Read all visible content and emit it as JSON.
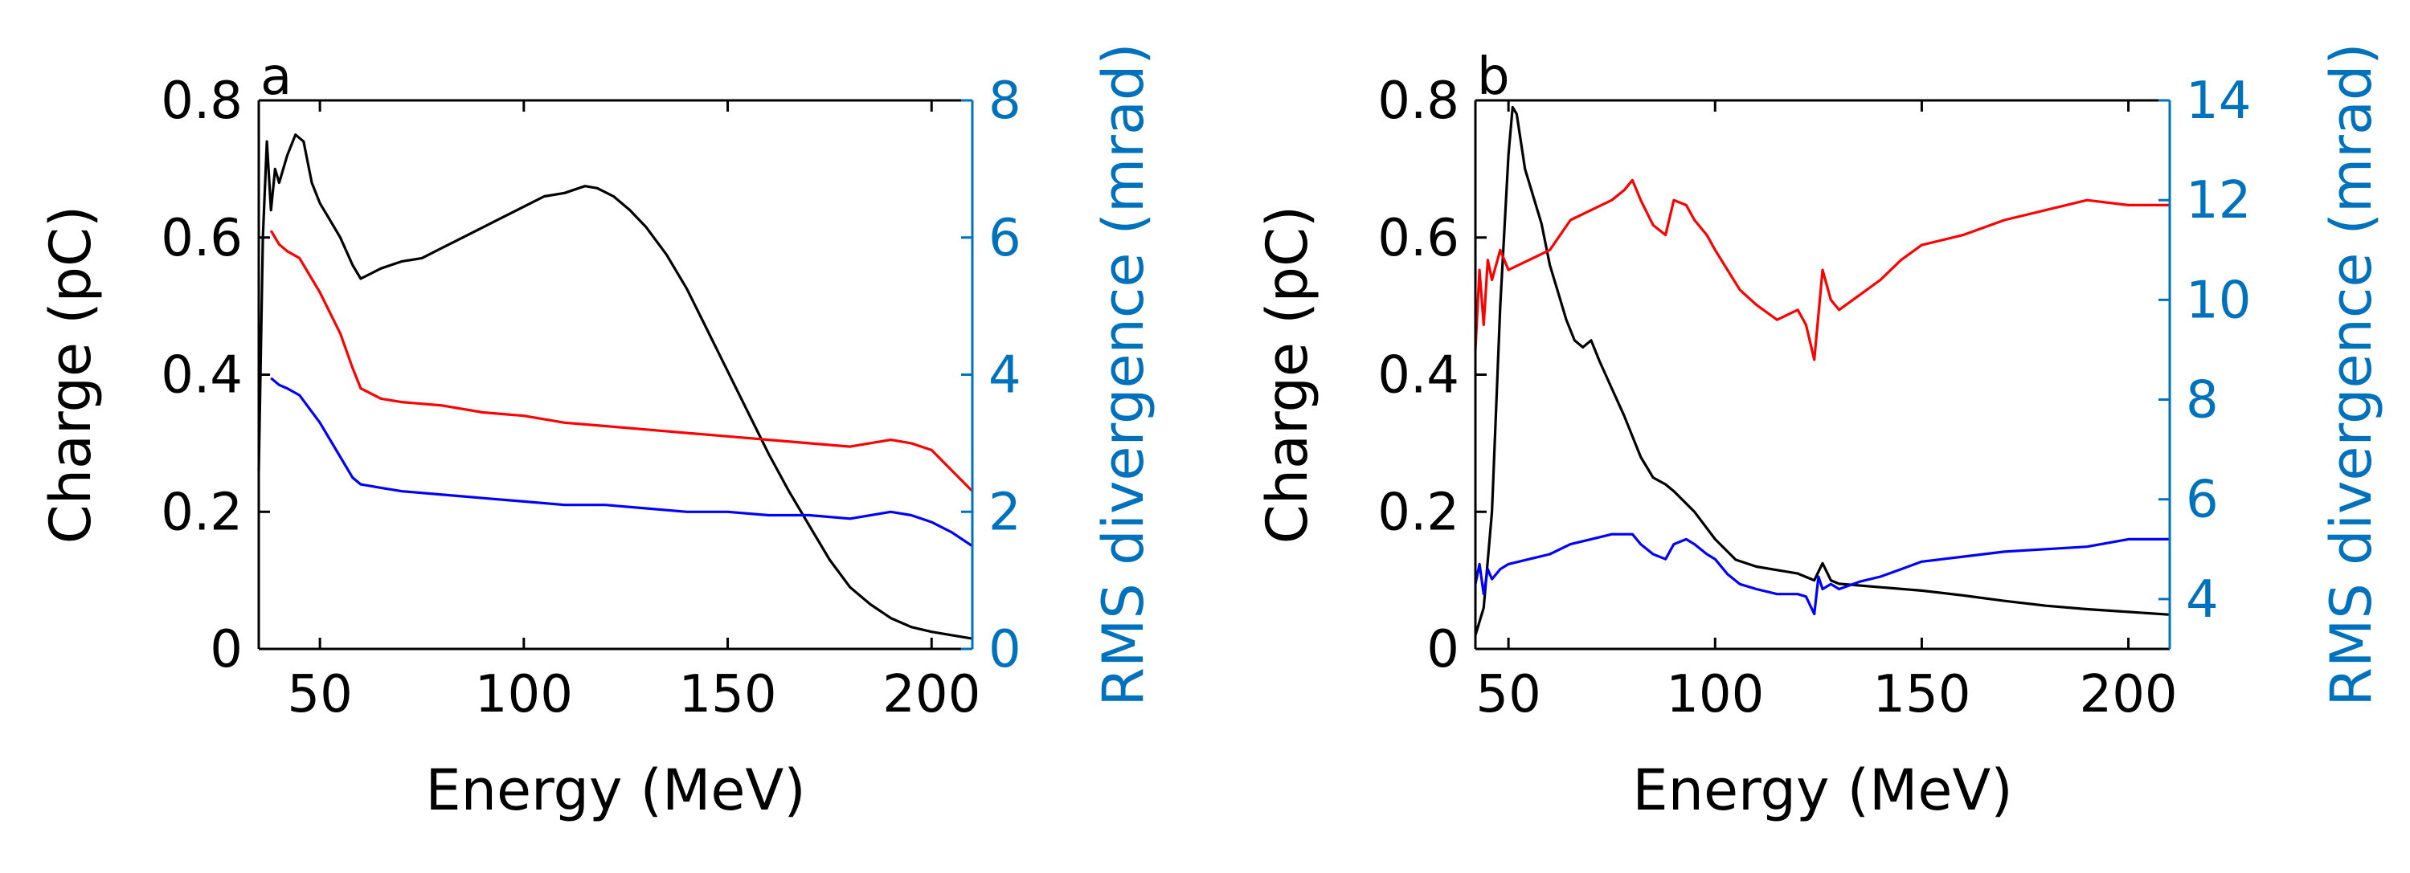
{
  "chart_data": [
    {
      "panel": "a",
      "type": "line",
      "xlabel": "Energy (MeV)",
      "ylabel": "Charge (pC)",
      "y2label": "RMS divergence (mrad)",
      "xlim": [
        35,
        210
      ],
      "ylim": [
        0,
        0.8
      ],
      "y2lim": [
        0,
        8
      ],
      "xticks": [
        50,
        100,
        150,
        200
      ],
      "yticks": [
        0,
        0.2,
        0.4,
        0.6,
        0.8
      ],
      "y2ticks": [
        0,
        2,
        4,
        6,
        8
      ],
      "ytick_labels": [
        "0",
        "0.2",
        "0.4",
        "0.6",
        "0.8"
      ],
      "y2tick_labels": [
        "0",
        "2",
        "4",
        "6",
        "8"
      ],
      "xtick_labels": [
        "50",
        "100",
        "150",
        "200"
      ],
      "series": [
        {
          "name": "charge",
          "axis": "left",
          "color": "#000000",
          "x": [
            35,
            36,
            37,
            38,
            39,
            40,
            42,
            44,
            46,
            48,
            50,
            52,
            55,
            58,
            60,
            65,
            70,
            75,
            80,
            85,
            90,
            95,
            100,
            105,
            110,
            115,
            118,
            122,
            126,
            130,
            135,
            140,
            145,
            150,
            155,
            160,
            165,
            170,
            175,
            180,
            185,
            190,
            195,
            200,
            205,
            210
          ],
          "y": [
            0.26,
            0.6,
            0.74,
            0.64,
            0.7,
            0.68,
            0.72,
            0.75,
            0.74,
            0.68,
            0.65,
            0.63,
            0.6,
            0.56,
            0.54,
            0.555,
            0.565,
            0.57,
            0.585,
            0.6,
            0.615,
            0.63,
            0.645,
            0.66,
            0.665,
            0.675,
            0.672,
            0.66,
            0.64,
            0.615,
            0.575,
            0.525,
            0.465,
            0.405,
            0.345,
            0.285,
            0.23,
            0.18,
            0.13,
            0.09,
            0.065,
            0.045,
            0.032,
            0.025,
            0.02,
            0.015
          ]
        },
        {
          "name": "divergence-red",
          "axis": "right",
          "color": "#ff0000",
          "x": [
            38,
            40,
            42,
            45,
            50,
            55,
            58,
            60,
            65,
            70,
            80,
            90,
            100,
            110,
            120,
            130,
            140,
            150,
            160,
            170,
            180,
            190,
            195,
            200,
            205,
            210
          ],
          "y": [
            6.1,
            5.9,
            5.8,
            5.7,
            5.2,
            4.6,
            4.1,
            3.8,
            3.65,
            3.6,
            3.55,
            3.45,
            3.4,
            3.3,
            3.25,
            3.2,
            3.15,
            3.1,
            3.05,
            3.0,
            2.95,
            3.05,
            3.0,
            2.9,
            2.6,
            2.3
          ]
        },
        {
          "name": "divergence-blue",
          "axis": "right",
          "color": "#0000ff",
          "x": [
            38,
            40,
            42,
            45,
            50,
            55,
            58,
            60,
            65,
            70,
            80,
            90,
            100,
            110,
            120,
            130,
            140,
            150,
            160,
            170,
            180,
            190,
            195,
            200,
            205,
            210
          ],
          "y": [
            3.95,
            3.85,
            3.8,
            3.7,
            3.3,
            2.8,
            2.5,
            2.4,
            2.35,
            2.3,
            2.25,
            2.2,
            2.15,
            2.1,
            2.1,
            2.05,
            2.0,
            2.0,
            1.95,
            1.95,
            1.9,
            2.0,
            1.95,
            1.85,
            1.7,
            1.5
          ]
        }
      ]
    },
    {
      "panel": "b",
      "type": "line",
      "xlabel": "Energy (MeV)",
      "ylabel": "Charge (pC)",
      "y2label": "RMS divergence (mrad)",
      "xlim": [
        42,
        210
      ],
      "ylim": [
        0,
        0.8
      ],
      "y2lim": [
        3,
        14
      ],
      "xticks": [
        50,
        100,
        150,
        200
      ],
      "yticks": [
        0,
        0.2,
        0.4,
        0.6,
        0.8
      ],
      "y2ticks": [
        4,
        6,
        8,
        10,
        12,
        14
      ],
      "ytick_labels": [
        "0",
        "0.2",
        "0.4",
        "0.6",
        "0.8"
      ],
      "y2tick_labels": [
        "4",
        "6",
        "8",
        "10",
        "12",
        "14"
      ],
      "xtick_labels": [
        "50",
        "100",
        "150",
        "200"
      ],
      "series": [
        {
          "name": "charge",
          "axis": "left",
          "color": "#000000",
          "x": [
            42,
            44,
            46,
            48,
            50,
            51,
            52,
            54,
            56,
            58,
            60,
            62,
            64,
            66,
            68,
            70,
            72,
            75,
            78,
            80,
            82,
            85,
            88,
            90,
            95,
            100,
            105,
            110,
            115,
            120,
            124,
            126,
            128,
            130,
            140,
            150,
            160,
            170,
            180,
            190,
            200,
            210
          ],
          "y": [
            0.02,
            0.06,
            0.2,
            0.5,
            0.72,
            0.79,
            0.78,
            0.7,
            0.66,
            0.62,
            0.56,
            0.52,
            0.48,
            0.45,
            0.44,
            0.45,
            0.42,
            0.38,
            0.34,
            0.31,
            0.28,
            0.25,
            0.24,
            0.23,
            0.2,
            0.16,
            0.13,
            0.12,
            0.115,
            0.11,
            0.1,
            0.125,
            0.1,
            0.095,
            0.09,
            0.085,
            0.078,
            0.07,
            0.063,
            0.058,
            0.054,
            0.05
          ]
        },
        {
          "name": "divergence-red",
          "axis": "right",
          "color": "#ff0000",
          "x": [
            42,
            43,
            44,
            45,
            46,
            48,
            50,
            55,
            60,
            65,
            70,
            75,
            78,
            80,
            82,
            85,
            88,
            90,
            93,
            95,
            98,
            100,
            103,
            106,
            110,
            115,
            120,
            122,
            124,
            126,
            128,
            130,
            135,
            140,
            145,
            150,
            160,
            170,
            180,
            190,
            200,
            210
          ],
          "y": [
            9.0,
            10.6,
            9.5,
            10.8,
            10.4,
            11.0,
            10.6,
            10.8,
            11.0,
            11.6,
            11.8,
            12.0,
            12.2,
            12.4,
            12.0,
            11.5,
            11.3,
            12.0,
            11.9,
            11.6,
            11.3,
            11.0,
            10.6,
            10.2,
            9.9,
            9.6,
            9.8,
            9.5,
            8.8,
            10.6,
            10.0,
            9.8,
            10.1,
            10.4,
            10.8,
            11.1,
            11.3,
            11.6,
            11.8,
            12.0,
            11.9,
            11.9
          ]
        },
        {
          "name": "divergence-blue",
          "axis": "right",
          "color": "#0000ff",
          "x": [
            42,
            43,
            44,
            45,
            46,
            48,
            50,
            55,
            60,
            65,
            70,
            75,
            78,
            80,
            82,
            85,
            88,
            90,
            93,
            95,
            98,
            100,
            103,
            106,
            110,
            115,
            120,
            122,
            124,
            125,
            126,
            128,
            130,
            135,
            140,
            145,
            150,
            160,
            170,
            180,
            190,
            200,
            210
          ],
          "y": [
            4.3,
            4.7,
            4.1,
            4.6,
            4.4,
            4.6,
            4.7,
            4.8,
            4.9,
            5.1,
            5.2,
            5.3,
            5.3,
            5.3,
            5.1,
            4.9,
            4.8,
            5.1,
            5.2,
            5.1,
            4.9,
            4.8,
            4.5,
            4.3,
            4.2,
            4.1,
            4.1,
            4.05,
            3.7,
            4.45,
            4.2,
            4.3,
            4.2,
            4.35,
            4.45,
            4.6,
            4.75,
            4.85,
            4.95,
            5.0,
            5.05,
            5.2,
            5.2
          ]
        }
      ]
    }
  ]
}
